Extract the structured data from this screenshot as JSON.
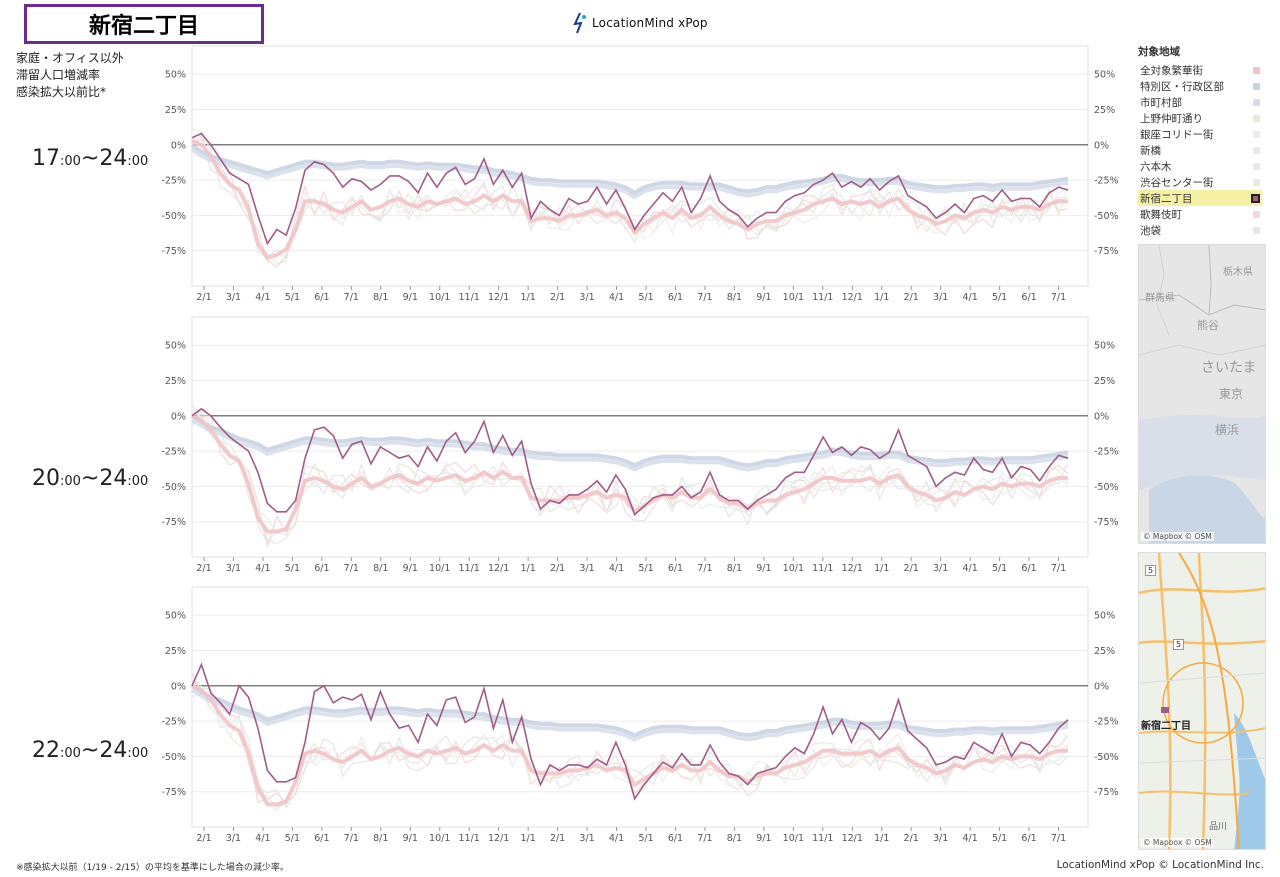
{
  "header": {
    "title": "新宿二丁目",
    "brand_text": "LocationMind xPop"
  },
  "description": "家庭・オフィス以外\n滞留人口増減率\n感染拡大以前比*",
  "panels": [
    {
      "label_main": "17",
      "label_sub1": ":00",
      "label_sep": "~",
      "label_main2": "24",
      "label_sub2": ":00"
    },
    {
      "label_main": "20",
      "label_sub1": ":00",
      "label_sep": "~",
      "label_main2": "24",
      "label_sub2": ":00"
    },
    {
      "label_main": "22",
      "label_sub1": ":00",
      "label_sep": "~",
      "label_main2": "24",
      "label_sub2": ":00"
    }
  ],
  "legend": {
    "title": "対象地域",
    "items": [
      {
        "label": "全対象繁華街",
        "color": "#f2c4c6",
        "selected": false
      },
      {
        "label": "特別区・行政区部",
        "color": "#c9d3e3",
        "selected": false
      },
      {
        "label": "市町村部",
        "color": "#d6dde9",
        "selected": false
      },
      {
        "label": "上野仲町通り",
        "color": "#e4ecd8",
        "selected": false
      },
      {
        "label": "銀座コリドー街",
        "color": "#ececec",
        "selected": false
      },
      {
        "label": "新橋",
        "color": "#e8e8ee",
        "selected": false
      },
      {
        "label": "六本木",
        "color": "#e8e8ee",
        "selected": false
      },
      {
        "label": "渋谷センター街",
        "color": "#e6ece0",
        "selected": false
      },
      {
        "label": "新宿二丁目",
        "color": "#a05c87",
        "selected": true
      },
      {
        "label": "歌舞伎町",
        "color": "#f4d8da",
        "selected": false
      },
      {
        "label": "池袋",
        "color": "#e6e6ea",
        "selected": false
      }
    ]
  },
  "map1": {
    "labels": [
      "栃木県",
      "群馬県",
      "熊谷",
      "さいたま",
      "東京",
      "横浜"
    ],
    "credit": "© Mapbox © OSM"
  },
  "map2": {
    "labels": [
      "5",
      "5",
      "新宿二丁目",
      "品川"
    ],
    "credit": "© Mapbox © OSM"
  },
  "footer": {
    "note": "※感染拡大以前（1/19 - 2/15）の平均を基準にした場合の減少率。",
    "credit": "LocationMind xPop © LocationMind Inc."
  },
  "chart_data": {
    "type": "line",
    "x_ticks": [
      "2/1",
      "3/1",
      "4/1",
      "5/1",
      "6/1",
      "7/1",
      "8/1",
      "9/1",
      "10/1",
      "11/1",
      "12/1",
      "1/1",
      "2/1",
      "3/1",
      "4/1",
      "5/1",
      "6/1",
      "7/1",
      "8/1",
      "9/1",
      "10/1",
      "11/1",
      "12/1",
      "1/1",
      "2/1",
      "3/1",
      "4/1",
      "5/1",
      "6/1",
      "7/1"
    ],
    "y_ticks": [
      "50%",
      "25%",
      "0%",
      "-25%",
      "-50%",
      "-75%"
    ],
    "ylim": [
      -100,
      70
    ],
    "colors": {
      "selected": "#a05c87",
      "all_districts": "#f2c4c6",
      "ward": "#c9d3e3",
      "municipal": "#d6dde9",
      "others": [
        "#e4ecd8",
        "#e6e6ea",
        "#f4d8da",
        "#ececec"
      ],
      "zero_line": "#555555",
      "grid": "#ececec"
    },
    "panels": [
      {
        "name": "17:00~24:00",
        "selected_series": [
          5,
          8,
          0,
          -10,
          -20,
          -24,
          -28,
          -50,
          -70,
          -60,
          -64,
          -45,
          -18,
          -12,
          -14,
          -20,
          -30,
          -24,
          -26,
          -32,
          -28,
          -22,
          -22,
          -26,
          -34,
          -20,
          -30,
          -20,
          -16,
          -28,
          -24,
          -10,
          -28,
          -18,
          -30,
          -20,
          -52,
          -40,
          -46,
          -50,
          -38,
          -42,
          -40,
          -30,
          -42,
          -32,
          -45,
          -60,
          -50,
          -42,
          -34,
          -40,
          -30,
          -48,
          -38,
          -22,
          -40,
          -46,
          -50,
          -58,
          -52,
          -48,
          -48,
          -40,
          -36,
          -34,
          -28,
          -25,
          -20,
          -30,
          -26,
          -30,
          -24,
          -32,
          -26,
          -22,
          -36,
          -40,
          -44,
          -52,
          -48,
          -42,
          -48,
          -38,
          -36,
          -40,
          -32,
          -40,
          -38,
          -38,
          -44,
          -34,
          -30,
          -32
        ],
        "district_avg": [
          3,
          0,
          -8,
          -20,
          -28,
          -32,
          -45,
          -70,
          -80,
          -78,
          -74,
          -60,
          -40,
          -40,
          -42,
          -46,
          -48,
          -44,
          -40,
          -46,
          -44,
          -40,
          -38,
          -42,
          -44,
          -40,
          -42,
          -40,
          -38,
          -42,
          -40,
          -36,
          -40,
          -36,
          -40,
          -40,
          -54,
          -52,
          -52,
          -54,
          -50,
          -50,
          -48,
          -46,
          -50,
          -48,
          -52,
          -62,
          -56,
          -52,
          -48,
          -52,
          -46,
          -52,
          -50,
          -44,
          -50,
          -54,
          -56,
          -60,
          -56,
          -54,
          -54,
          -50,
          -48,
          -46,
          -42,
          -40,
          -38,
          -42,
          -40,
          -42,
          -40,
          -44,
          -40,
          -38,
          -46,
          -50,
          -52,
          -56,
          -54,
          -50,
          -52,
          -48,
          -46,
          -48,
          -44,
          -46,
          -44,
          -44,
          -46,
          -42,
          -40,
          -40
        ],
        "ward": [
          0,
          -5,
          -8,
          -10,
          -12,
          -14,
          -16,
          -18,
          -20,
          -18,
          -16,
          -14,
          -12,
          -12,
          -13,
          -14,
          -14,
          -13,
          -12,
          -13,
          -13,
          -12,
          -12,
          -13,
          -14,
          -13,
          -14,
          -14,
          -14,
          -15,
          -16,
          -16,
          -18,
          -19,
          -20,
          -22,
          -24,
          -25,
          -25,
          -26,
          -26,
          -26,
          -26,
          -26,
          -27,
          -28,
          -30,
          -34,
          -30,
          -28,
          -27,
          -27,
          -27,
          -28,
          -28,
          -28,
          -28,
          -30,
          -32,
          -33,
          -32,
          -30,
          -30,
          -28,
          -27,
          -26,
          -25,
          -24,
          -22,
          -22,
          -24,
          -25,
          -25,
          -25,
          -24,
          -24,
          -27,
          -28,
          -29,
          -30,
          -30,
          -29,
          -29,
          -28,
          -28,
          -29,
          -28,
          -28,
          -28,
          -28,
          -27,
          -26,
          -25,
          -24
        ]
      },
      {
        "name": "20:00~24:00",
        "selected_series": [
          0,
          5,
          0,
          -8,
          -15,
          -20,
          -25,
          -40,
          -62,
          -68,
          -68,
          -60,
          -30,
          -10,
          -8,
          -14,
          -30,
          -20,
          -18,
          -34,
          -22,
          -26,
          -30,
          -28,
          -36,
          -22,
          -32,
          -18,
          -12,
          -26,
          -18,
          -4,
          -26,
          -14,
          -28,
          -18,
          -48,
          -66,
          -60,
          -62,
          -56,
          -56,
          -52,
          -46,
          -54,
          -42,
          -52,
          -70,
          -64,
          -58,
          -56,
          -56,
          -50,
          -58,
          -54,
          -40,
          -56,
          -60,
          -60,
          -66,
          -60,
          -56,
          -52,
          -44,
          -40,
          -40,
          -28,
          -15,
          -26,
          -22,
          -28,
          -22,
          -24,
          -30,
          -26,
          -10,
          -28,
          -32,
          -36,
          -50,
          -44,
          -40,
          -42,
          -30,
          -38,
          -40,
          -30,
          -44,
          -36,
          -38,
          -46,
          -36,
          -28,
          -30
        ],
        "district_avg": [
          0,
          -3,
          -10,
          -20,
          -28,
          -32,
          -48,
          -72,
          -82,
          -82,
          -80,
          -66,
          -46,
          -44,
          -46,
          -50,
          -52,
          -48,
          -44,
          -50,
          -48,
          -44,
          -42,
          -46,
          -48,
          -44,
          -46,
          -44,
          -42,
          -46,
          -44,
          -40,
          -44,
          -40,
          -44,
          -44,
          -58,
          -60,
          -60,
          -60,
          -58,
          -58,
          -56,
          -54,
          -58,
          -56,
          -58,
          -68,
          -64,
          -60,
          -56,
          -58,
          -54,
          -58,
          -58,
          -52,
          -58,
          -62,
          -62,
          -66,
          -62,
          -60,
          -60,
          -56,
          -54,
          -52,
          -48,
          -44,
          -44,
          -46,
          -46,
          -46,
          -44,
          -48,
          -44,
          -42,
          -50,
          -54,
          -56,
          -60,
          -58,
          -54,
          -56,
          -52,
          -50,
          -52,
          -48,
          -50,
          -48,
          -48,
          -50,
          -46,
          -44,
          -44
        ],
        "ward": [
          0,
          -4,
          -8,
          -10,
          -13,
          -16,
          -18,
          -20,
          -24,
          -22,
          -20,
          -18,
          -16,
          -16,
          -17,
          -18,
          -18,
          -17,
          -16,
          -17,
          -17,
          -16,
          -16,
          -17,
          -18,
          -17,
          -18,
          -18,
          -18,
          -19,
          -20,
          -20,
          -22,
          -23,
          -24,
          -24,
          -26,
          -27,
          -27,
          -28,
          -28,
          -28,
          -28,
          -28,
          -29,
          -30,
          -32,
          -35,
          -32,
          -30,
          -29,
          -29,
          -29,
          -30,
          -30,
          -30,
          -30,
          -32,
          -34,
          -35,
          -34,
          -32,
          -32,
          -30,
          -29,
          -28,
          -27,
          -26,
          -24,
          -24,
          -26,
          -27,
          -27,
          -27,
          -26,
          -26,
          -29,
          -30,
          -31,
          -32,
          -32,
          -31,
          -31,
          -30,
          -30,
          -31,
          -30,
          -30,
          -30,
          -30,
          -29,
          -28,
          -27,
          -26
        ]
      },
      {
        "name": "22:00~24:00",
        "selected_series": [
          0,
          15,
          -5,
          -12,
          -20,
          0,
          -8,
          -30,
          -60,
          -68,
          -68,
          -65,
          -40,
          -4,
          0,
          -12,
          -8,
          -10,
          -6,
          -24,
          -4,
          -20,
          -30,
          -28,
          -40,
          -20,
          -28,
          -10,
          -8,
          -26,
          -22,
          -2,
          -30,
          -10,
          -40,
          -22,
          -52,
          -70,
          -56,
          -60,
          -56,
          -56,
          -58,
          -52,
          -56,
          -40,
          -56,
          -80,
          -70,
          -62,
          -54,
          -58,
          -48,
          -56,
          -56,
          -42,
          -54,
          -62,
          -64,
          -70,
          -62,
          -60,
          -58,
          -50,
          -44,
          -48,
          -34,
          -15,
          -34,
          -24,
          -40,
          -26,
          -30,
          -38,
          -30,
          -10,
          -32,
          -38,
          -44,
          -56,
          -54,
          -50,
          -52,
          -40,
          -44,
          -48,
          -34,
          -50,
          -40,
          -42,
          -48,
          -40,
          -30,
          -24
        ],
        "district_avg": [
          0,
          -3,
          -10,
          -20,
          -28,
          -32,
          -48,
          -72,
          -84,
          -84,
          -82,
          -68,
          -48,
          -46,
          -48,
          -52,
          -54,
          -50,
          -46,
          -52,
          -50,
          -46,
          -44,
          -48,
          -50,
          -46,
          -48,
          -46,
          -44,
          -48,
          -46,
          -42,
          -46,
          -42,
          -46,
          -46,
          -60,
          -62,
          -62,
          -62,
          -60,
          -60,
          -58,
          -56,
          -60,
          -58,
          -60,
          -70,
          -66,
          -62,
          -58,
          -60,
          -56,
          -60,
          -60,
          -54,
          -60,
          -64,
          -64,
          -68,
          -64,
          -62,
          -62,
          -58,
          -56,
          -54,
          -50,
          -46,
          -46,
          -48,
          -48,
          -48,
          -46,
          -50,
          -46,
          -44,
          -52,
          -56,
          -58,
          -62,
          -60,
          -56,
          -58,
          -54,
          -52,
          -54,
          -50,
          -52,
          -50,
          -50,
          -52,
          -48,
          -46,
          -46
        ],
        "ward": [
          0,
          -4,
          -8,
          -10,
          -13,
          -16,
          -18,
          -20,
          -24,
          -22,
          -20,
          -18,
          -16,
          -16,
          -17,
          -18,
          -18,
          -17,
          -16,
          -17,
          -17,
          -16,
          -16,
          -17,
          -18,
          -17,
          -18,
          -18,
          -18,
          -19,
          -20,
          -20,
          -22,
          -23,
          -24,
          -24,
          -26,
          -27,
          -27,
          -28,
          -28,
          -28,
          -28,
          -28,
          -29,
          -30,
          -32,
          -35,
          -32,
          -30,
          -29,
          -29,
          -29,
          -30,
          -30,
          -30,
          -30,
          -32,
          -34,
          -35,
          -34,
          -32,
          -32,
          -30,
          -29,
          -28,
          -27,
          -26,
          -24,
          -24,
          -26,
          -27,
          -27,
          -27,
          -26,
          -26,
          -29,
          -30,
          -31,
          -32,
          -32,
          -31,
          -31,
          -30,
          -30,
          -31,
          -30,
          -30,
          -30,
          -30,
          -29,
          -28,
          -27,
          -26
        ]
      }
    ]
  }
}
